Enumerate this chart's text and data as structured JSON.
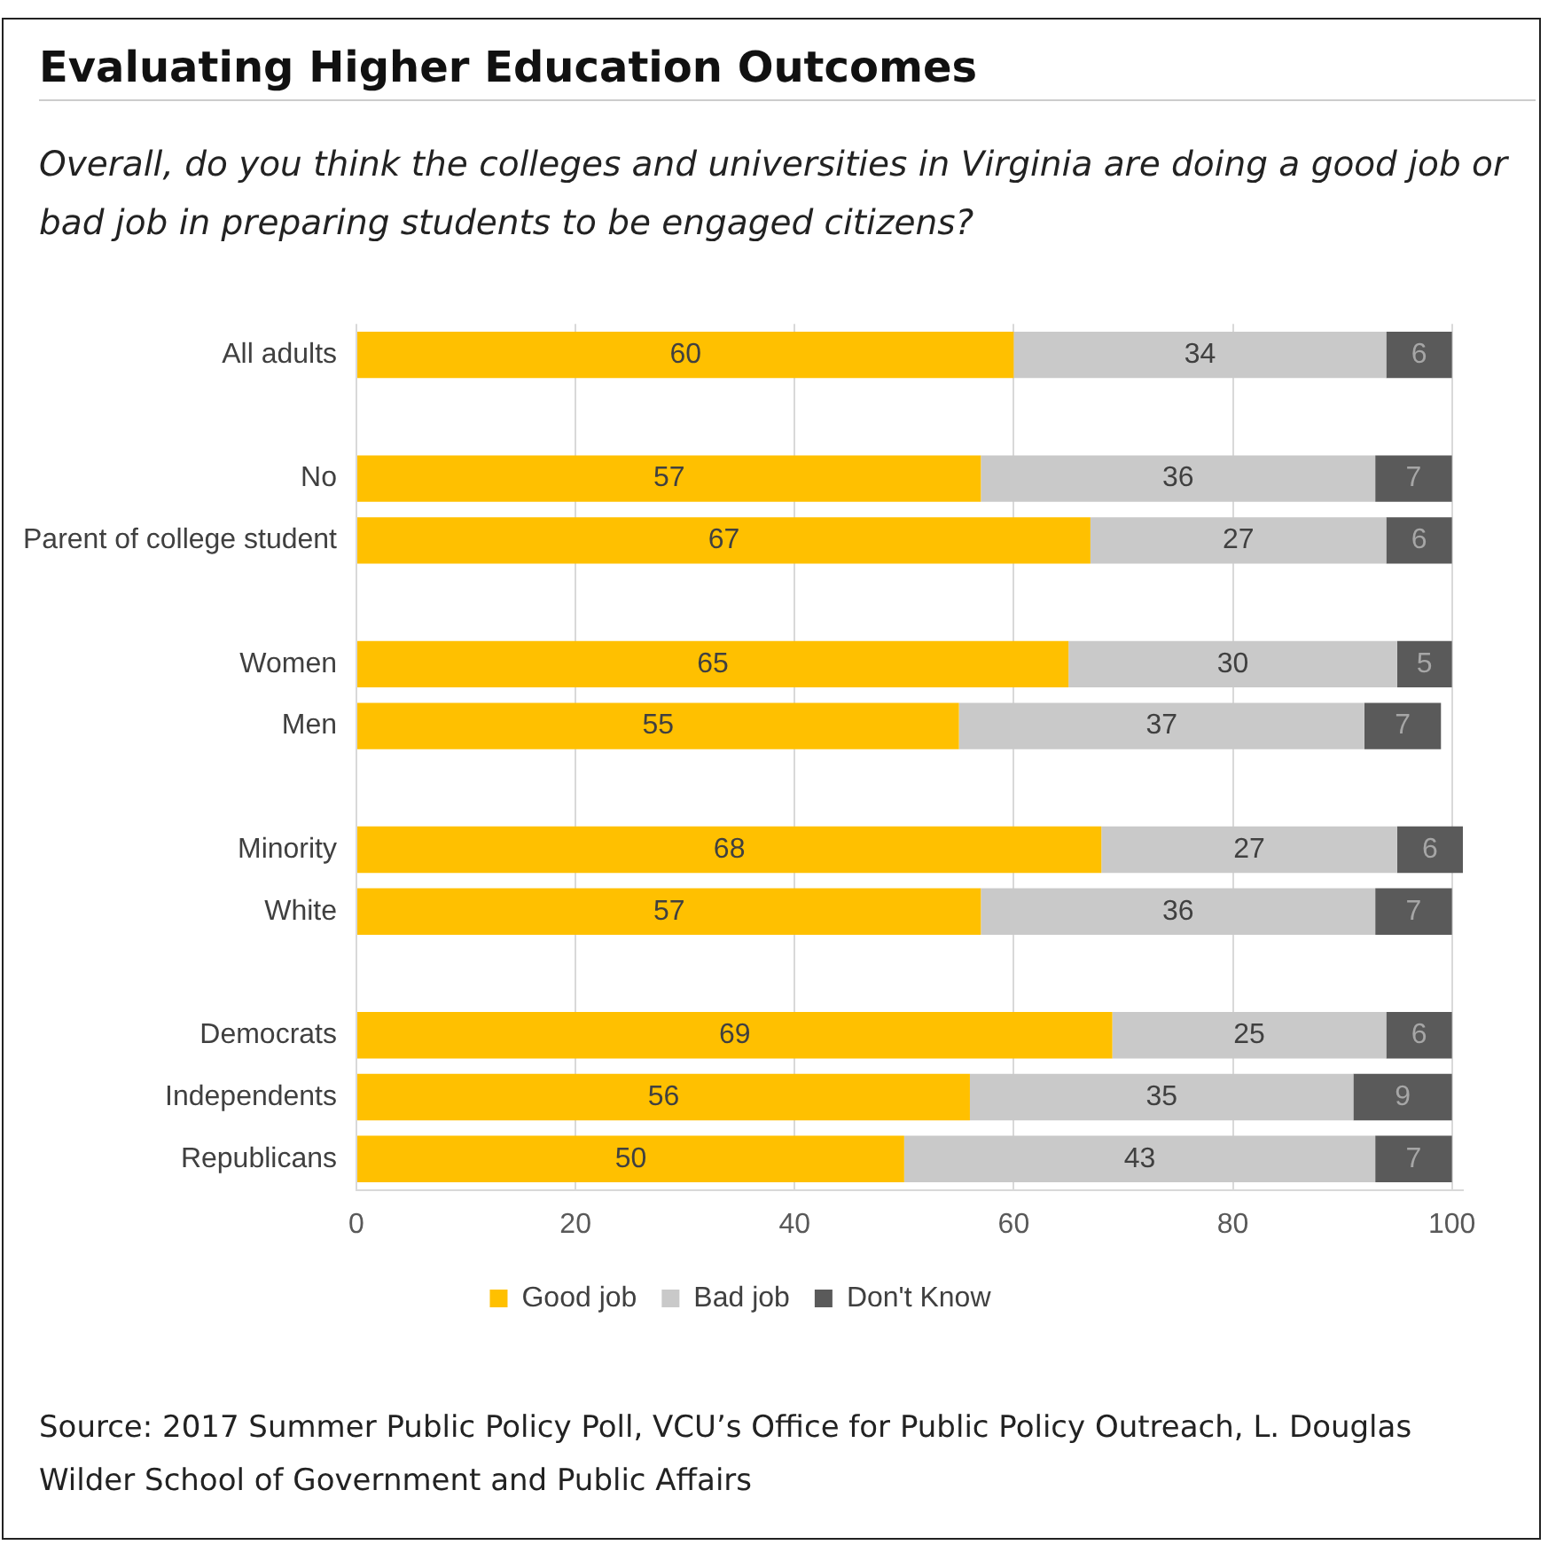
{
  "chart_data": {
    "type": "bar",
    "orientation": "horizontal",
    "stacked": true,
    "title": "Evaluating Higher Education Outcomes",
    "subtitle": "Overall, do you think the colleges and universities in Virginia are doing a good job or bad job in preparing students to be engaged citizens?",
    "categories": [
      "All adults",
      null,
      "No",
      "Parent of college student",
      null,
      "Women",
      "Men",
      null,
      "Minority",
      "White",
      null,
      "Democrats",
      "Independents",
      "Republicans"
    ],
    "series": [
      {
        "name": "Good job",
        "color": "#ffc000",
        "values": [
          60,
          null,
          57,
          67,
          null,
          65,
          55,
          null,
          68,
          57,
          null,
          69,
          56,
          50
        ]
      },
      {
        "name": "Bad job",
        "color": "#c9c9c9",
        "values": [
          34,
          null,
          36,
          27,
          null,
          30,
          37,
          null,
          27,
          36,
          null,
          25,
          35,
          43
        ]
      },
      {
        "name": "Don't Know",
        "color": "#5a5a5a",
        "values": [
          6,
          null,
          7,
          6,
          null,
          5,
          7,
          null,
          6,
          7,
          null,
          6,
          9,
          7
        ]
      }
    ],
    "xlim": [
      0,
      101
    ],
    "xticks": [
      0,
      20,
      40,
      60,
      80,
      100
    ],
    "grid": "x",
    "legend": "bottom",
    "data_labels": true,
    "annotations": [
      "Source: 2017 Summer Public Policy Poll, VCU’s Office for Public Policy Outreach, L. Douglas Wilder School of Government and Public Affairs"
    ]
  }
}
